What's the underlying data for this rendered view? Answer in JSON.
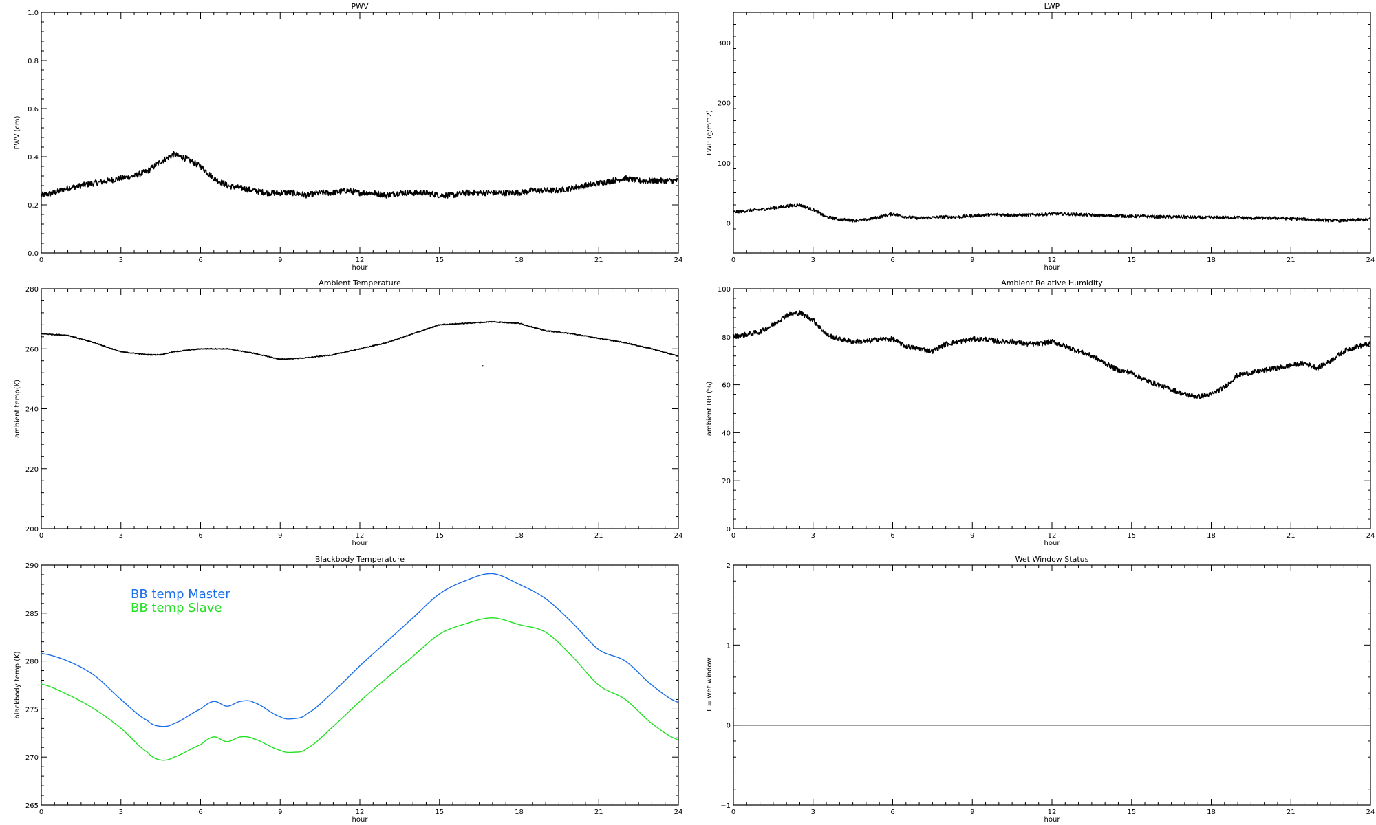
{
  "chart_data": [
    {
      "id": "pwv",
      "type": "line",
      "title": "PWV",
      "xlabel": "hour",
      "ylabel": "PWV (cm)",
      "xlim": [
        0,
        24
      ],
      "ylim": [
        0,
        1.0
      ],
      "xticks": [
        0,
        3,
        6,
        9,
        12,
        15,
        18,
        21,
        24
      ],
      "xtick_labels": [
        "0",
        "3",
        "6",
        "9",
        "12",
        "15",
        "18",
        "21",
        "24"
      ],
      "yticks": [
        0,
        0.2,
        0.4,
        0.6,
        0.8,
        1.0
      ],
      "ytick_labels": [
        "0.0",
        "0.2",
        "0.4",
        "0.6",
        "0.8",
        "1.0"
      ],
      "series": [
        {
          "color": "#000000",
          "noise": 0.012,
          "x": [
            0,
            0.5,
            1,
            1.5,
            2,
            2.5,
            3,
            3.5,
            4,
            4.5,
            5,
            5.5,
            6,
            6.5,
            7,
            7.5,
            8,
            8.5,
            9,
            9.5,
            10,
            10.5,
            11,
            11.5,
            12,
            12.5,
            13,
            13.5,
            14,
            14.5,
            15,
            15.5,
            16,
            16.5,
            17,
            17.5,
            18,
            18.5,
            19,
            19.5,
            20,
            20.5,
            21,
            21.5,
            22,
            22.5,
            23,
            23.5,
            24
          ],
          "y": [
            0.24,
            0.25,
            0.27,
            0.28,
            0.29,
            0.3,
            0.31,
            0.32,
            0.34,
            0.38,
            0.41,
            0.39,
            0.36,
            0.31,
            0.28,
            0.27,
            0.26,
            0.25,
            0.25,
            0.25,
            0.24,
            0.25,
            0.25,
            0.26,
            0.25,
            0.25,
            0.24,
            0.25,
            0.25,
            0.25,
            0.24,
            0.24,
            0.25,
            0.25,
            0.25,
            0.25,
            0.25,
            0.26,
            0.26,
            0.26,
            0.27,
            0.28,
            0.29,
            0.3,
            0.31,
            0.3,
            0.3,
            0.3,
            0.3
          ]
        }
      ]
    },
    {
      "id": "lwp",
      "type": "line",
      "title": "LWP",
      "xlabel": "hour",
      "ylabel": "LWP (g/m^2)",
      "xlim": [
        0,
        24
      ],
      "ylim": [
        -50,
        350
      ],
      "xticks": [
        0,
        3,
        6,
        9,
        12,
        15,
        18,
        21,
        24
      ],
      "xtick_labels": [
        "0",
        "3",
        "6",
        "9",
        "12",
        "15",
        "18",
        "21",
        "24"
      ],
      "yticks": [
        0,
        100,
        200,
        300
      ],
      "ytick_labels": [
        "0",
        "100",
        "200",
        "300"
      ],
      "series": [
        {
          "color": "#000000",
          "noise": 2.5,
          "x": [
            0,
            0.5,
            1,
            1.5,
            2,
            2.5,
            3,
            3.5,
            4,
            4.5,
            5,
            5.5,
            6,
            6.5,
            7,
            7.5,
            8,
            8.5,
            9,
            9.5,
            10,
            10.5,
            11,
            11.5,
            12,
            12.5,
            13,
            13.5,
            14,
            14.5,
            15,
            15.5,
            16,
            16.5,
            17,
            17.5,
            18,
            18.5,
            19,
            19.5,
            20,
            20.5,
            21,
            21.5,
            22,
            22.5,
            23,
            23.5,
            24
          ],
          "y": [
            18,
            20,
            22,
            25,
            28,
            30,
            22,
            10,
            6,
            4,
            5,
            10,
            15,
            10,
            8,
            9,
            10,
            10,
            12,
            13,
            14,
            13,
            13,
            14,
            15,
            15,
            14,
            13,
            12,
            12,
            11,
            11,
            10,
            10,
            10,
            9,
            9,
            9,
            9,
            8,
            8,
            8,
            7,
            6,
            5,
            4,
            4,
            5,
            6
          ]
        }
      ]
    },
    {
      "id": "ambient-temp",
      "type": "line",
      "title": "Ambient Temperature",
      "xlabel": "hour",
      "ylabel": "ambient temp(K)",
      "xlim": [
        0,
        24
      ],
      "ylim": [
        200,
        280
      ],
      "xticks": [
        0,
        3,
        6,
        9,
        12,
        15,
        18,
        21,
        24
      ],
      "xtick_labels": [
        "0",
        "3",
        "6",
        "9",
        "12",
        "15",
        "18",
        "21",
        "24"
      ],
      "yticks": [
        200,
        220,
        240,
        260,
        280
      ],
      "ytick_labels": [
        "200",
        "220",
        "240",
        "260",
        "280"
      ],
      "series": [
        {
          "color": "#000000",
          "noise": 0.15,
          "x": [
            0,
            1,
            2,
            3,
            4,
            4.5,
            5,
            6,
            7,
            8,
            9,
            10,
            11,
            12,
            13,
            14,
            15,
            16,
            17,
            18,
            19,
            20,
            21,
            22,
            23,
            24
          ],
          "y": [
            265,
            264.5,
            262,
            259,
            258,
            258,
            259,
            260,
            260,
            258.5,
            256.5,
            257,
            258,
            260,
            262,
            265,
            268,
            268.5,
            269,
            268.5,
            266,
            265,
            263.5,
            262,
            260,
            257.5
          ]
        }
      ]
    },
    {
      "id": "ambient-rh",
      "type": "line",
      "title": "Ambient Relative Humidity",
      "xlabel": "hour",
      "ylabel": "ambient RH (%)",
      "xlim": [
        0,
        24
      ],
      "ylim": [
        0,
        100
      ],
      "xticks": [
        0,
        3,
        6,
        9,
        12,
        15,
        18,
        21,
        24
      ],
      "xtick_labels": [
        "0",
        "3",
        "6",
        "9",
        "12",
        "15",
        "18",
        "21",
        "24"
      ],
      "yticks": [
        0,
        20,
        40,
        60,
        80,
        100
      ],
      "ytick_labels": [
        "0",
        "20",
        "40",
        "60",
        "80",
        "100"
      ],
      "series": [
        {
          "color": "#000000",
          "noise": 1.0,
          "x": [
            0,
            0.5,
            1,
            1.5,
            2,
            2.5,
            3,
            3.5,
            4,
            4.5,
            5,
            5.5,
            6,
            6.5,
            7,
            7.5,
            8,
            8.5,
            9,
            9.5,
            10,
            10.5,
            11,
            11.5,
            12,
            12.5,
            13,
            13.5,
            14,
            14.5,
            15,
            15.5,
            16,
            16.5,
            17,
            17.5,
            18,
            18.5,
            19,
            19.5,
            20,
            20.5,
            21,
            21.5,
            22,
            22.5,
            23,
            23.5,
            24
          ],
          "y": [
            80,
            81,
            82,
            85,
            89,
            90,
            87,
            81,
            79,
            78,
            78,
            79,
            79,
            76,
            75,
            74,
            77,
            78,
            79,
            79,
            78,
            78,
            77,
            77,
            78,
            76,
            74,
            72,
            69,
            66,
            65,
            62,
            60,
            58,
            56,
            55,
            56,
            59,
            64,
            65,
            66,
            67,
            68,
            69,
            67,
            70,
            74,
            76,
            77
          ]
        }
      ]
    },
    {
      "id": "blackbody-temp",
      "type": "line",
      "title": "Blackbody Temperature",
      "xlabel": "hour",
      "ylabel": "blackbody temp (K)",
      "xlim": [
        0,
        24
      ],
      "ylim": [
        265,
        290
      ],
      "xticks": [
        0,
        3,
        6,
        9,
        12,
        15,
        18,
        21,
        24
      ],
      "xtick_labels": [
        "0",
        "3",
        "6",
        "9",
        "12",
        "15",
        "18",
        "21",
        "24"
      ],
      "yticks": [
        265,
        270,
        275,
        280,
        285,
        290
      ],
      "ytick_labels": [
        "265",
        "270",
        "275",
        "280",
        "285",
        "290"
      ],
      "legend": [
        "BB temp Master",
        "BB temp Slave"
      ],
      "series": [
        {
          "name": "BB temp Master",
          "color": "#1a6ee8",
          "noise": 0,
          "x": [
            0,
            1,
            2,
            3,
            4,
            4.5,
            5,
            6,
            6.5,
            7,
            7.5,
            8,
            9,
            9.5,
            10,
            11,
            12,
            13,
            14,
            15,
            16,
            17,
            18,
            19,
            20,
            21,
            22,
            23,
            24
          ],
          "y": [
            280.8,
            280,
            278.5,
            276,
            273.8,
            273.2,
            273.5,
            275,
            275.8,
            275.3,
            275.8,
            275.7,
            274.2,
            274,
            274.5,
            276.8,
            279.5,
            282,
            284.5,
            287,
            288.4,
            289.1,
            288,
            286.5,
            284,
            281.2,
            280,
            277.5,
            275.7
          ]
        },
        {
          "name": "BB temp Slave",
          "color": "#22e022",
          "noise": 0,
          "x": [
            0,
            1,
            2,
            3,
            4,
            4.5,
            5,
            6,
            6.5,
            7,
            7.5,
            8,
            9,
            9.5,
            10,
            11,
            12,
            13,
            14,
            15,
            16,
            17,
            18,
            19,
            20,
            21,
            22,
            23,
            24
          ],
          "y": [
            277.6,
            276.5,
            275,
            273,
            270.5,
            269.7,
            270,
            271.3,
            272.1,
            271.6,
            272.1,
            271.9,
            270.7,
            270.5,
            270.9,
            273.2,
            275.8,
            278.2,
            280.5,
            282.8,
            283.9,
            284.5,
            283.8,
            283,
            280.5,
            277.5,
            276,
            273.5,
            271.8
          ]
        }
      ]
    },
    {
      "id": "wet-window",
      "type": "line",
      "title": "Wet Window Status",
      "xlabel": "hour",
      "ylabel": "1 = wet window",
      "xlim": [
        0,
        24
      ],
      "ylim": [
        -1,
        2
      ],
      "xticks": [
        0,
        3,
        6,
        9,
        12,
        15,
        18,
        21,
        24
      ],
      "xtick_labels": [
        "0",
        "3",
        "6",
        "9",
        "12",
        "15",
        "18",
        "21",
        "24"
      ],
      "yticks": [
        -1,
        0,
        1,
        2
      ],
      "ytick_labels": [
        "−1",
        "0",
        "1",
        "2"
      ],
      "series": [
        {
          "color": "#000000",
          "noise": 0,
          "x": [
            0,
            24
          ],
          "y": [
            0,
            0
          ]
        }
      ]
    }
  ]
}
